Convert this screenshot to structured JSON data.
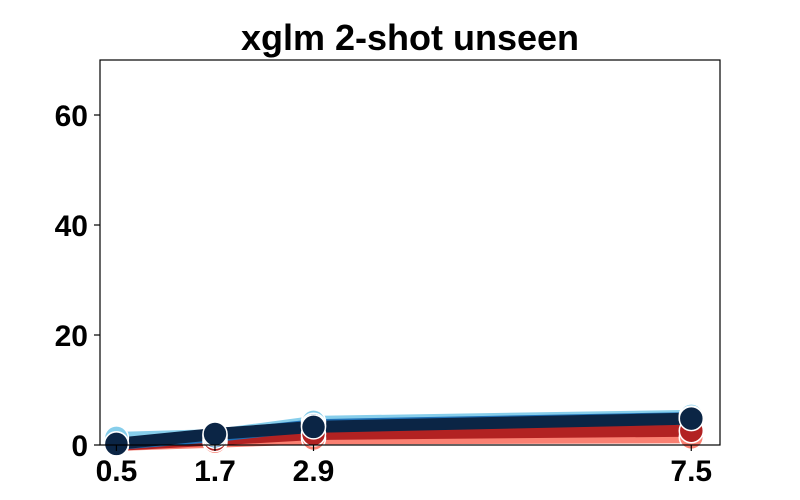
{
  "chart_data": {
    "type": "line",
    "title": "xglm 2-shot unseen",
    "xlabel": "",
    "ylabel": "",
    "x": [
      0.5,
      1.7,
      2.9,
      7.5
    ],
    "x_tick_labels": [
      "0.5",
      "1.7",
      "2.9",
      "7.5"
    ],
    "xlim": [
      0.3,
      7.85
    ],
    "ylim": [
      0,
      70
    ],
    "y_ticks": [
      0,
      20,
      40,
      60
    ],
    "y_tick_labels": [
      "0",
      "20",
      "40",
      "60"
    ],
    "grid": false,
    "series": [
      {
        "color": "#fa8072",
        "values": [
          0.0,
          0.6,
          1.2,
          1.4
        ]
      },
      {
        "color": "#b22222",
        "values": [
          0.0,
          1.0,
          2.0,
          2.6
        ]
      },
      {
        "color": "#87ceeb",
        "values": [
          1.3,
          1.8,
          4.2,
          5.3
        ]
      },
      {
        "color": "#1e6fb5",
        "values": [
          0.2,
          1.6,
          3.6,
          4.9
        ]
      },
      {
        "color": "#0b2545",
        "values": [
          0.2,
          2.0,
          3.3,
          4.8
        ]
      }
    ]
  }
}
